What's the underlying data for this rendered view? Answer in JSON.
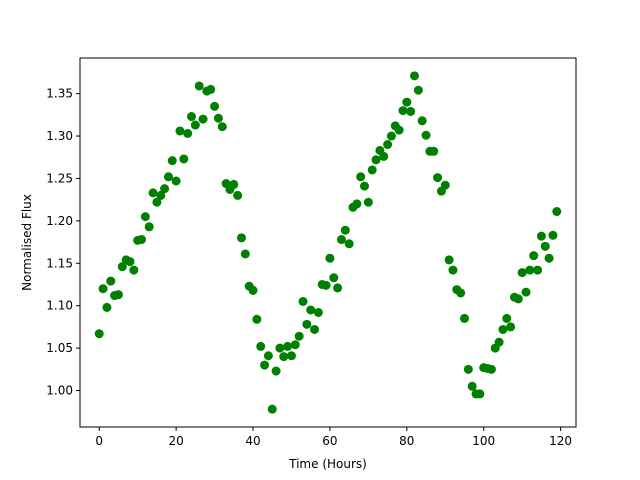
{
  "chart_data": {
    "type": "scatter",
    "title": "",
    "xlabel": "Time (Hours)",
    "ylabel": "Normalised Flux",
    "xlim": [
      -5,
      124
    ],
    "ylim": [
      0.957,
      1.392
    ],
    "x_ticks": [
      0,
      20,
      40,
      60,
      80,
      100,
      120
    ],
    "x_tick_labels": [
      "0",
      "20",
      "40",
      "60",
      "80",
      "100",
      "120"
    ],
    "y_ticks": [
      1.0,
      1.05,
      1.1,
      1.15,
      1.2,
      1.25,
      1.3,
      1.35
    ],
    "y_tick_labels": [
      "1.00",
      "1.05",
      "1.10",
      "1.15",
      "1.20",
      "1.25",
      "1.30",
      "1.35"
    ],
    "grid": false,
    "legend": "none",
    "marker_color": "#008000",
    "series": [
      {
        "x": [
          0,
          1,
          2,
          3,
          4,
          5,
          6,
          7,
          8,
          9,
          10,
          11,
          12,
          13,
          14,
          15,
          16,
          17,
          18,
          19,
          20,
          21,
          22,
          23,
          24,
          25,
          26,
          27,
          28,
          29,
          30,
          31,
          32,
          33,
          34,
          35,
          36,
          37,
          38,
          39,
          40,
          41,
          42,
          43,
          44,
          45,
          46,
          47,
          48,
          49,
          50,
          51,
          52,
          53,
          54,
          55,
          56,
          57,
          58,
          59,
          60,
          61,
          62,
          63,
          64,
          65,
          66,
          67,
          68,
          69,
          70,
          71,
          72,
          73,
          74,
          75,
          76,
          77,
          78,
          79,
          80,
          81,
          82,
          83,
          84,
          85,
          86,
          87,
          88,
          89,
          90,
          91,
          92,
          93,
          94,
          95,
          96,
          97,
          98,
          99,
          100,
          101,
          102,
          103,
          104,
          105,
          106,
          107,
          108,
          109,
          110,
          111,
          112,
          113,
          114,
          115,
          116,
          117,
          118,
          119
        ],
        "y": [
          1.067,
          1.12,
          1.098,
          1.129,
          1.112,
          1.113,
          1.146,
          1.154,
          1.152,
          1.142,
          1.177,
          1.178,
          1.205,
          1.193,
          1.233,
          1.222,
          1.23,
          1.238,
          1.252,
          1.271,
          1.247,
          1.306,
          1.273,
          1.303,
          1.323,
          1.313,
          1.359,
          1.32,
          1.353,
          1.355,
          1.335,
          1.321,
          1.311,
          1.244,
          1.237,
          1.243,
          1.23,
          1.18,
          1.161,
          1.123,
          1.118,
          1.084,
          1.052,
          1.03,
          1.041,
          0.978,
          1.023,
          1.05,
          1.04,
          1.052,
          1.041,
          1.054,
          1.064,
          1.105,
          1.078,
          1.095,
          1.072,
          1.092,
          1.125,
          1.124,
          1.156,
          1.133,
          1.121,
          1.178,
          1.189,
          1.173,
          1.216,
          1.22,
          1.252,
          1.241,
          1.222,
          1.26,
          1.272,
          1.283,
          1.276,
          1.29,
          1.3,
          1.312,
          1.307,
          1.33,
          1.34,
          1.329,
          1.371,
          1.354,
          1.318,
          1.301,
          1.282,
          1.282,
          1.251,
          1.235,
          1.242,
          1.154,
          1.142,
          1.119,
          1.115,
          1.085,
          1.025,
          1.005,
          0.996,
          0.996,
          1.027,
          1.026,
          1.025,
          1.05,
          1.057,
          1.072,
          1.085,
          1.075,
          1.11,
          1.108,
          1.139,
          1.116,
          1.142,
          1.159,
          1.142,
          1.182,
          1.17,
          1.156,
          1.183,
          1.211
        ]
      }
    ]
  }
}
